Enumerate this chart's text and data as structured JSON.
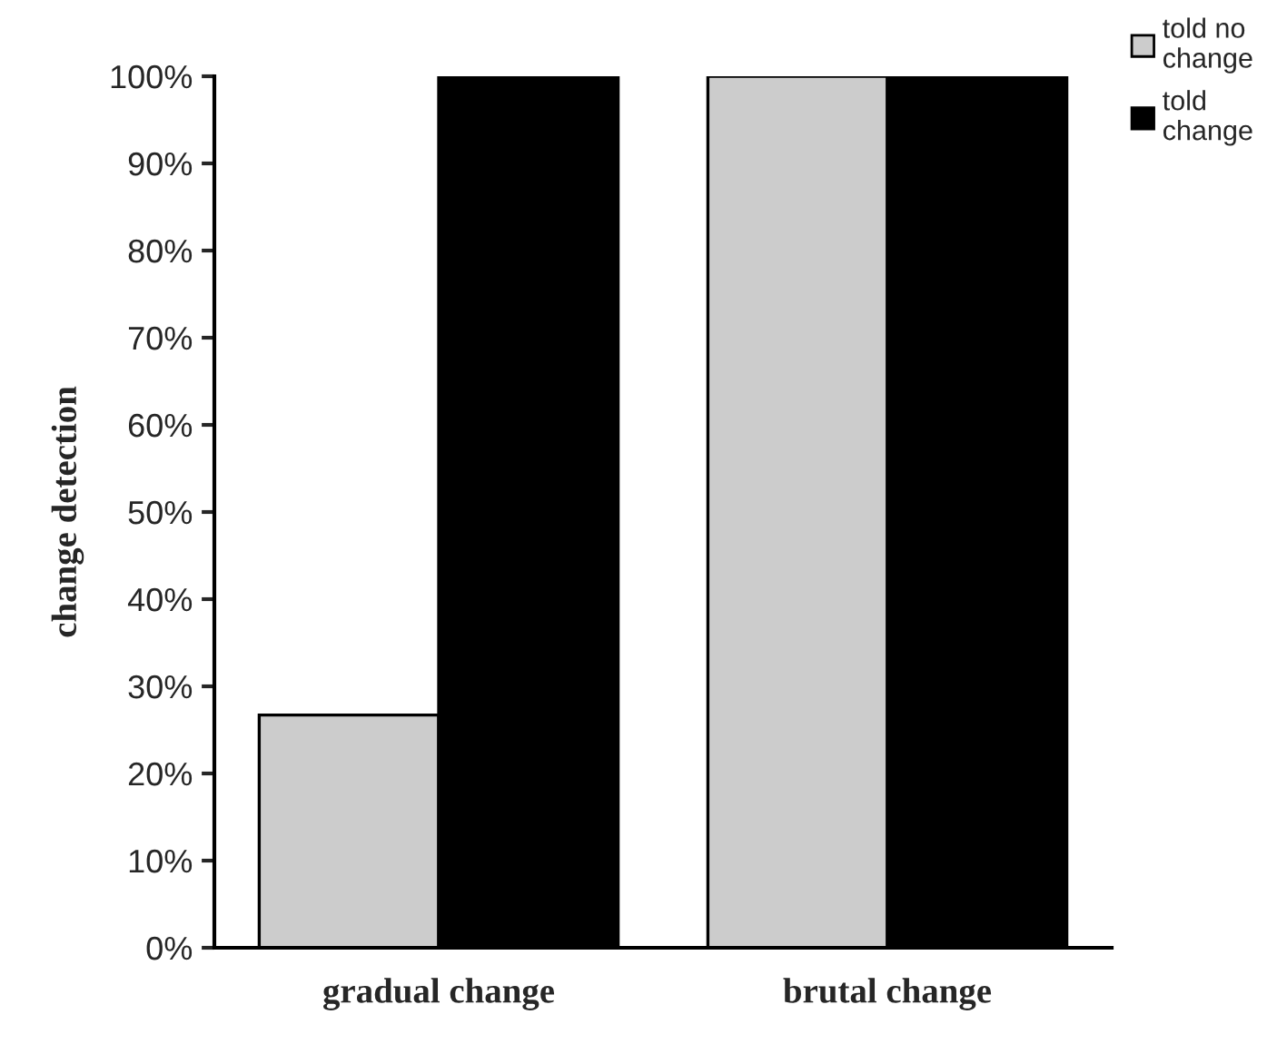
{
  "chart_data": {
    "type": "bar",
    "ylabel": "change detection",
    "categories": [
      "gradual change",
      "brutal change"
    ],
    "series": [
      {
        "name": "told no\nchange",
        "color": "#cccccc",
        "values": [
          26.7,
          100
        ]
      },
      {
        "name": "told\nchange",
        "color": "#000000",
        "values": [
          100,
          100
        ]
      }
    ],
    "ylim": [
      0,
      100
    ],
    "yticks": [
      {
        "value": 0,
        "label": "0%"
      },
      {
        "value": 10,
        "label": "10%"
      },
      {
        "value": 20,
        "label": "20%"
      },
      {
        "value": 30,
        "label": "30%"
      },
      {
        "value": 40,
        "label": "40%"
      },
      {
        "value": 50,
        "label": "50%"
      },
      {
        "value": 60,
        "label": "60%"
      },
      {
        "value": 70,
        "label": "70%"
      },
      {
        "value": 80,
        "label": "80%"
      },
      {
        "value": 90,
        "label": "90%"
      },
      {
        "value": 100,
        "label": "100%"
      }
    ],
    "grid": false,
    "legend": "top right"
  }
}
